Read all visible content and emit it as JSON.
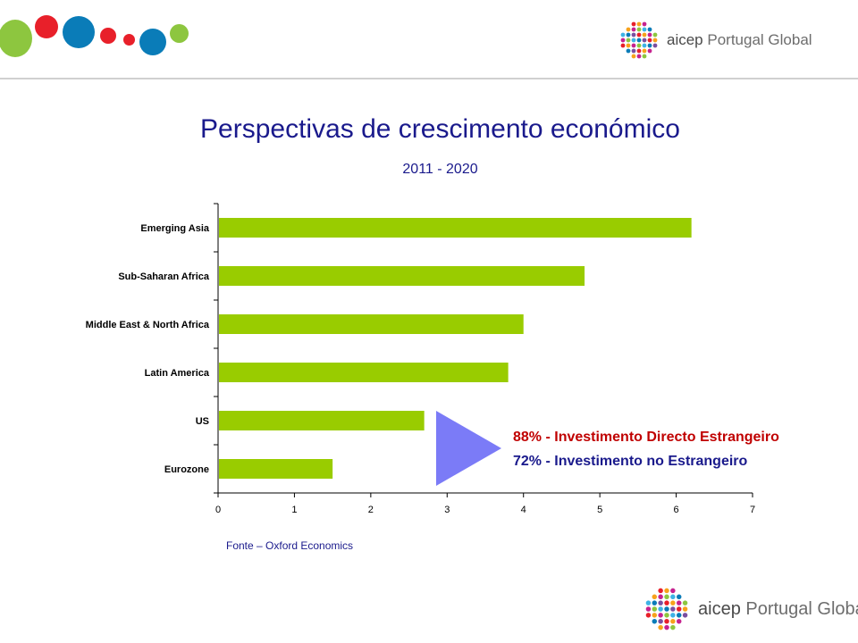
{
  "slide": {
    "title": "Perspectivas de crescimento económico",
    "subtitle": "2011 - 2020",
    "annotation_fdi": "88% - Investimento Directo Estrangeiro",
    "annotation_foreign": "72% - Investimento no Estrangeiro",
    "source": "Fonte – Oxford Economics"
  },
  "brand": {
    "logo_prefix": "aicep",
    "logo_name": "Portugal Global"
  },
  "colors": {
    "bar": "#99cc00",
    "title": "#1a1a8c",
    "annotation_fdi": "#c00000",
    "annotation_foreign": "#1a1a8c",
    "arrow": "#7b7bf7",
    "dot_green": "#8dc63f",
    "dot_red": "#e8202a",
    "dot_blue": "#0a7cb8"
  },
  "chart_data": {
    "type": "bar",
    "orientation": "horizontal",
    "categories": [
      "Emerging Asia",
      "Sub-Saharan Africa",
      "Middle East & North Africa",
      "Latin America",
      "US",
      "Eurozone"
    ],
    "values": [
      6.2,
      4.8,
      4.0,
      3.8,
      2.7,
      1.5
    ],
    "xlim": [
      0,
      7
    ],
    "xticks": [
      0,
      1,
      2,
      3,
      4,
      5,
      6,
      7
    ],
    "grid": false,
    "legend": false
  }
}
